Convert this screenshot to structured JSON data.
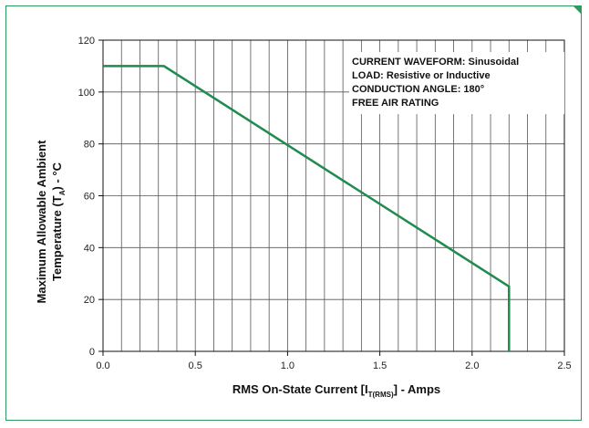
{
  "chart_data": {
    "type": "line",
    "title": "",
    "xlabel": {
      "main": "RMS On-State Current [I",
      "sub": "T(RMS)",
      "end": "] - Amps"
    },
    "ylabel": {
      "line1": "Maximum Allowable Ambient",
      "line2_pre": "Temperature  (T",
      "line2_sub": "A",
      "line2_post": ") - °C"
    },
    "xlim": [
      0.0,
      2.5
    ],
    "ylim": [
      0,
      120
    ],
    "x_ticks": [
      "0.0",
      "0.5",
      "1.0",
      "1.5",
      "2.0",
      "2.5"
    ],
    "y_ticks": [
      "0",
      "20",
      "40",
      "60",
      "80",
      "100",
      "120"
    ],
    "grid": true,
    "x_minor_step": 0.1,
    "series": [
      {
        "x": [
          0.0,
          0.33,
          2.2,
          2.2
        ],
        "y": [
          110,
          110,
          25,
          0
        ],
        "color": "#1f8c4e"
      }
    ],
    "annotations": [
      "CURRENT WAVEFORM: Sinusoidal",
      "LOAD: Resistive or Inductive",
      "CONDUCTION ANGLE: 180°",
      "FREE AIR RATING"
    ]
  }
}
